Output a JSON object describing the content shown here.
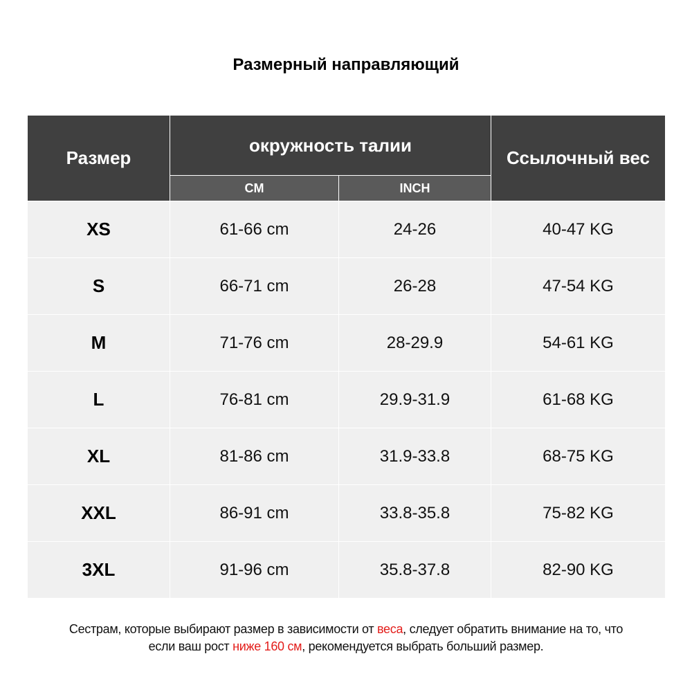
{
  "title": "Размерный направляющий",
  "header": {
    "size": "Размер",
    "waist": "окружность талии",
    "cm": "CM",
    "inch": "INCH",
    "weight": "Ссылочный вес"
  },
  "rows": [
    {
      "size": "XS",
      "cm": "61-66 cm",
      "inch": "24-26",
      "weight": "40-47 KG"
    },
    {
      "size": "S",
      "cm": "66-71 cm",
      "inch": "26-28",
      "weight": "47-54 KG"
    },
    {
      "size": "M",
      "cm": "71-76 cm",
      "inch": "28-29.9",
      "weight": "54-61 KG"
    },
    {
      "size": "L",
      "cm": "76-81 cm",
      "inch": "29.9-31.9",
      "weight": "61-68 KG"
    },
    {
      "size": "XL",
      "cm": "81-86 cm",
      "inch": "31.9-33.8",
      "weight": "68-75 KG"
    },
    {
      "size": "XXL",
      "cm": "86-91 cm",
      "inch": "33.8-35.8",
      "weight": "75-82 KG"
    },
    {
      "size": "3XL",
      "cm": "91-96 cm",
      "inch": "35.8-37.8",
      "weight": "82-90 KG"
    }
  ],
  "note": {
    "p1": "Сестрам, которые выбирают размер в зависимости от ",
    "r1": "веса",
    "p2": ", следует обратить внимание на то, что",
    "p3": "если ваш рост ",
    "r2": "ниже 160 см",
    "p4": ", рекомендуется выбрать больший размер."
  },
  "colors": {
    "header": "#404040",
    "subheader": "#5a5a5a",
    "row": "#f0f0f0",
    "highlight": "#e31d1a"
  }
}
